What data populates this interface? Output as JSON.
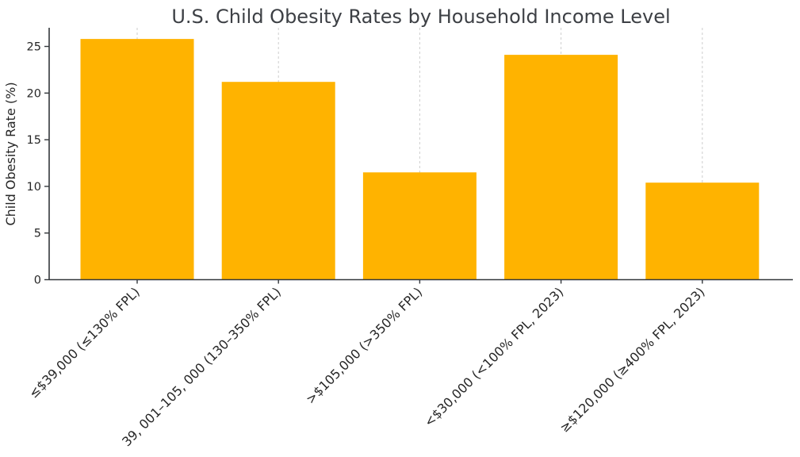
{
  "chart_data": {
    "type": "bar",
    "title": "U.S. Child Obesity Rates by Household Income Level",
    "xlabel": "",
    "ylabel": "Child Obesity Rate (%)",
    "categories": [
      "≤$39,000 (≤130% FPL)",
      "39, 001–105, 000 (130–350% FPL)",
      ">$105,000 (>350% FPL)",
      "<$30,000 (<100% FPL, 2023)",
      "≥$120,000 (≥400% FPL, 2023)"
    ],
    "values": [
      25.8,
      21.2,
      11.5,
      24.1,
      10.4
    ],
    "yticks": [
      0,
      5,
      10,
      15,
      20,
      25
    ],
    "ylim": [
      0,
      27
    ],
    "bar_color": "#FFB300",
    "axis_color": "#33373b",
    "grid": "vertical-dashed-at-bar-centers",
    "legend": "none",
    "x_tick_label_rotation_deg": 45
  }
}
